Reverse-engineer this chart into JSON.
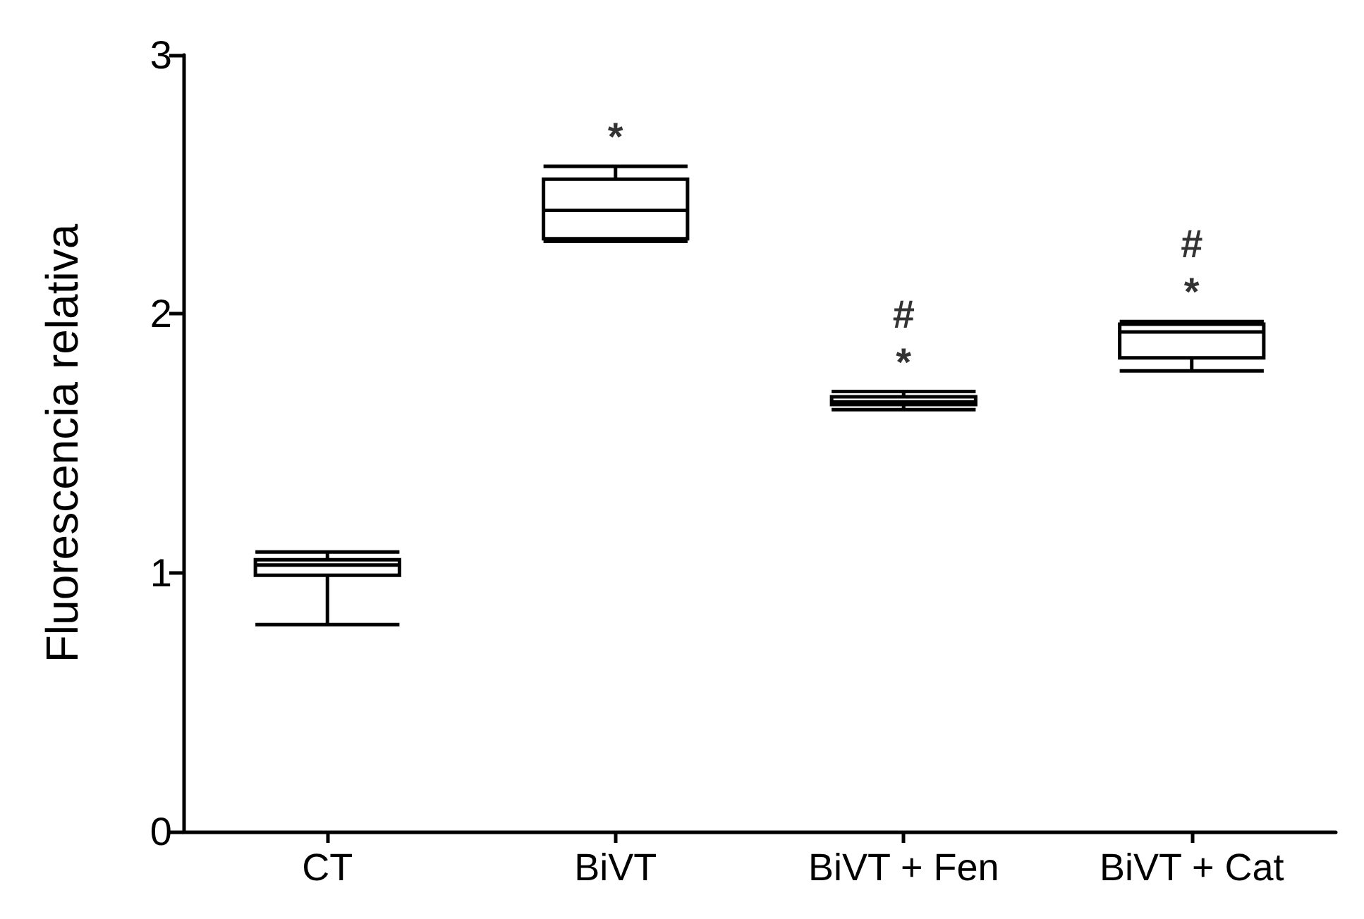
{
  "chart_data": {
    "type": "box",
    "ylabel": "Fluorescencia relativa",
    "categories": [
      "CT",
      "BiVT",
      "BiVT + Fen",
      "BiVT + Cat"
    ],
    "boxes": [
      {
        "low": 0.8,
        "q1": 0.99,
        "median": 1.03,
        "q3": 1.05,
        "high": 1.08
      },
      {
        "low": 2.28,
        "q1": 2.29,
        "median": 2.4,
        "q3": 2.52,
        "high": 2.57
      },
      {
        "low": 1.63,
        "q1": 1.65,
        "median": 1.66,
        "q3": 1.68,
        "high": 1.7
      },
      {
        "low": 1.78,
        "q1": 1.83,
        "median": 1.93,
        "q3": 1.96,
        "high": 1.97
      }
    ],
    "color": "#000000",
    "ylim": [
      0,
      3
    ],
    "yticks": [
      0,
      1,
      2,
      3
    ],
    "grid": false,
    "annotations": [
      "*",
      "#\n*",
      "#\n*"
    ]
  }
}
